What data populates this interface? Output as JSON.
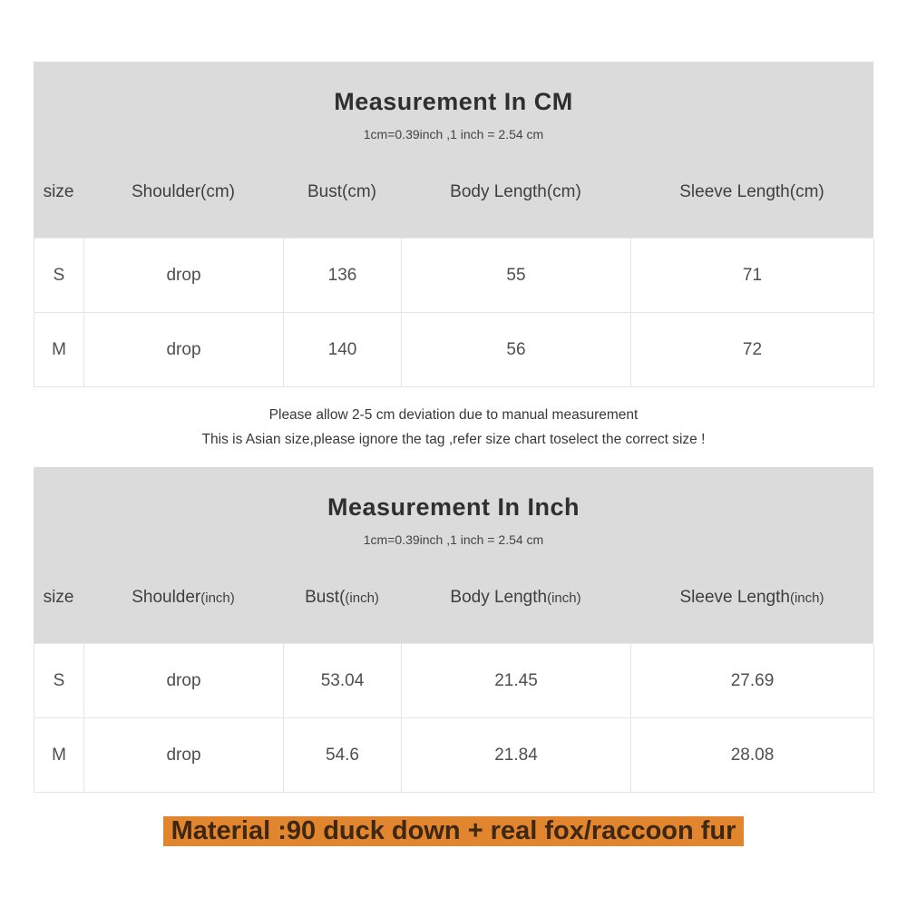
{
  "cm_section": {
    "title": "Measurement In CM",
    "subtitle": "1cm=0.39inch ,1 inch = 2.54 cm",
    "columns": [
      {
        "main": "size",
        "suffix": ""
      },
      {
        "main": "Shoulder",
        "suffix": "(cm)"
      },
      {
        "main": "Bust",
        "suffix": "(cm)"
      },
      {
        "main": "Body Length",
        "suffix": "(cm)"
      },
      {
        "main": "Sleeve Length",
        "suffix": "(cm)"
      }
    ],
    "rows": [
      {
        "size": "S",
        "shoulder": "drop",
        "bust": "136",
        "body_length": "55",
        "sleeve_length": "71"
      },
      {
        "size": "M",
        "shoulder": "drop",
        "bust": "140",
        "body_length": "56",
        "sleeve_length": "72"
      }
    ],
    "notes": [
      "Please allow 2-5 cm deviation due to manual measurement",
      "This is Asian size,please ignore the tag ,refer size chart toselect the correct size !"
    ]
  },
  "inch_section": {
    "title": "Measurement In Inch",
    "subtitle": "1cm=0.39inch ,1 inch = 2.54 cm",
    "columns": [
      {
        "main": "size",
        "suffix": ""
      },
      {
        "main": "Shoulder",
        "suffix": "(inch)"
      },
      {
        "main": "Bust(",
        "suffix": "(inch)"
      },
      {
        "main": "Body Length",
        "suffix": "(inch)"
      },
      {
        "main": "Sleeve Length",
        "suffix": "(inch)"
      }
    ],
    "rows": [
      {
        "size": "S",
        "shoulder": "drop",
        "bust": "53.04",
        "body_length": "21.45",
        "sleeve_length": "27.69"
      },
      {
        "size": "M",
        "shoulder": "drop",
        "bust": "54.6",
        "body_length": "21.84",
        "sleeve_length": "28.08"
      }
    ]
  },
  "material_bar": {
    "text": "Material :90 duck down + real fox/raccoon fur",
    "background": "#e1862e",
    "text_color": "#3e2713"
  },
  "colors": {
    "section_header_bg": "#dbdbdb",
    "table_border": "#e4e4e4",
    "text_primary": "#3c3c3c",
    "text_values": "#4f4f4f"
  }
}
